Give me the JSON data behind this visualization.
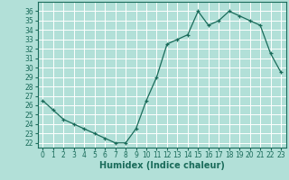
{
  "x": [
    0,
    1,
    2,
    3,
    4,
    5,
    6,
    7,
    8,
    9,
    10,
    11,
    12,
    13,
    14,
    15,
    16,
    17,
    18,
    19,
    20,
    21,
    22,
    23
  ],
  "y": [
    26.5,
    25.5,
    24.5,
    24.0,
    23.5,
    23.0,
    22.5,
    22.0,
    22.0,
    23.5,
    26.5,
    29.0,
    32.5,
    33.0,
    33.5,
    36.0,
    34.5,
    35.0,
    36.0,
    35.5,
    35.0,
    34.5,
    31.5,
    29.5
  ],
  "xlabel": "Humidex (Indice chaleur)",
  "bg_color": "#b2e0d8",
  "grid_color": "#ffffff",
  "line_color": "#1a6b5a",
  "marker_color": "#1a6b5a",
  "ylim_min": 21.5,
  "ylim_max": 37.0,
  "xlim_min": -0.5,
  "xlim_max": 23.5,
  "yticks": [
    22,
    23,
    24,
    25,
    26,
    27,
    28,
    29,
    30,
    31,
    32,
    33,
    34,
    35,
    36
  ],
  "xticks": [
    0,
    1,
    2,
    3,
    4,
    5,
    6,
    7,
    8,
    9,
    10,
    11,
    12,
    13,
    14,
    15,
    16,
    17,
    18,
    19,
    20,
    21,
    22,
    23
  ],
  "tick_fontsize": 5.5,
  "xlabel_fontsize": 7.0
}
